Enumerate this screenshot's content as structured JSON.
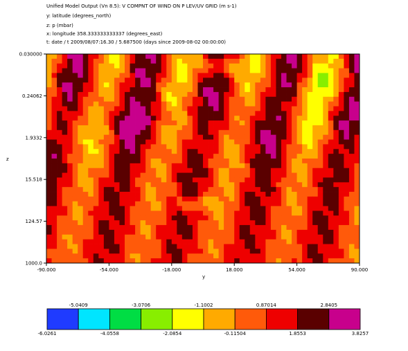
{
  "header": {
    "lines": [
      "Unified Model Output (Vn 8.5): V COMPNT OF WIND ON P LEV/UV GRID (m s-1)",
      "y: latitude  (degrees_north)",
      "z: p  (mbar)",
      "x: longitude 358.333333333337 (degrees_east)",
      "t: date / t 2009/08/07:16.30 / 5.687500 (days since 2009-08-02 00:00:00)"
    ]
  },
  "chart_data": {
    "type": "heatmap",
    "title": "Unified Model Output (Vn 8.5): V COMPNT OF WIND ON P LEV/UV GRID (m s-1)",
    "xlabel": "y",
    "ylabel": "z",
    "x_ticks": [
      "-90.000",
      "-54.000",
      "-18.000",
      "18.000",
      "54.000",
      "90.000"
    ],
    "x_range": [
      -90,
      90
    ],
    "y_ticks": [
      "0.030000",
      "0.24062",
      "1.9332",
      "15.518",
      "124.57",
      "1000.0"
    ],
    "y_scale": "log",
    "y_range": [
      0.03,
      1000
    ],
    "colorbar": {
      "upper_labels": [
        "-5.0409",
        "-3.0706",
        "-1.1002",
        "0.87014",
        "2.8405"
      ],
      "lower_labels": [
        "-6.0261",
        "-4.0558",
        "-2.0854",
        "-0.11504",
        "1.8553",
        "3.8257"
      ],
      "range": [
        -6.0261,
        3.8257
      ],
      "colors": [
        "#1f3bff",
        "#00e5ff",
        "#00dd44",
        "#88ee00",
        "#ffff00",
        "#ffaa00",
        "#ff5a0a",
        "#ee0000",
        "#5a0000",
        "#c8008c"
      ]
    }
  }
}
